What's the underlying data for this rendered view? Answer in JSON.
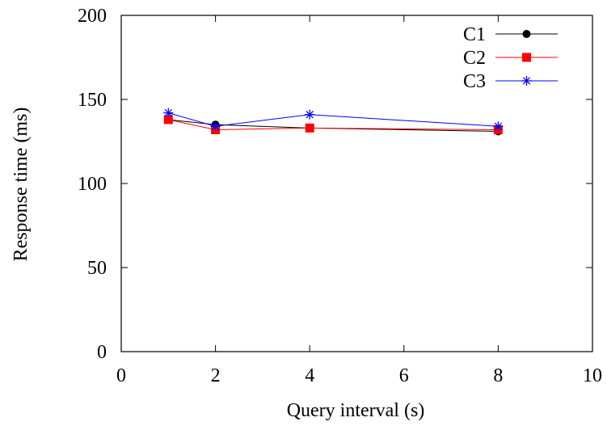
{
  "chart_data": {
    "type": "line",
    "title": "",
    "xlabel": "Query interval (s)",
    "ylabel": "Response time (ms)",
    "xlim": [
      0,
      10
    ],
    "ylim": [
      0,
      200
    ],
    "xticks": [
      0,
      2,
      4,
      6,
      8,
      10
    ],
    "yticks": [
      0,
      50,
      100,
      150,
      200
    ],
    "xtick_labels": [
      "0",
      "2",
      "4",
      "6",
      "8",
      "10"
    ],
    "ytick_labels": [
      "0",
      "50",
      "100",
      "150",
      "200"
    ],
    "grid": false,
    "legend_position": "top-right",
    "series": [
      {
        "name": "C1",
        "color": "#000000",
        "marker": "circle",
        "x": [
          1,
          2,
          4,
          8
        ],
        "y": [
          138,
          135,
          133,
          131
        ]
      },
      {
        "name": "C2",
        "color": "#ff0000",
        "marker": "square",
        "x": [
          1,
          2,
          4,
          8
        ],
        "y": [
          138,
          132,
          133,
          132
        ]
      },
      {
        "name": "C3",
        "color": "#0000ff",
        "marker": "asterisk",
        "x": [
          1,
          2,
          4,
          8
        ],
        "y": [
          142,
          134,
          141,
          134
        ]
      }
    ]
  }
}
